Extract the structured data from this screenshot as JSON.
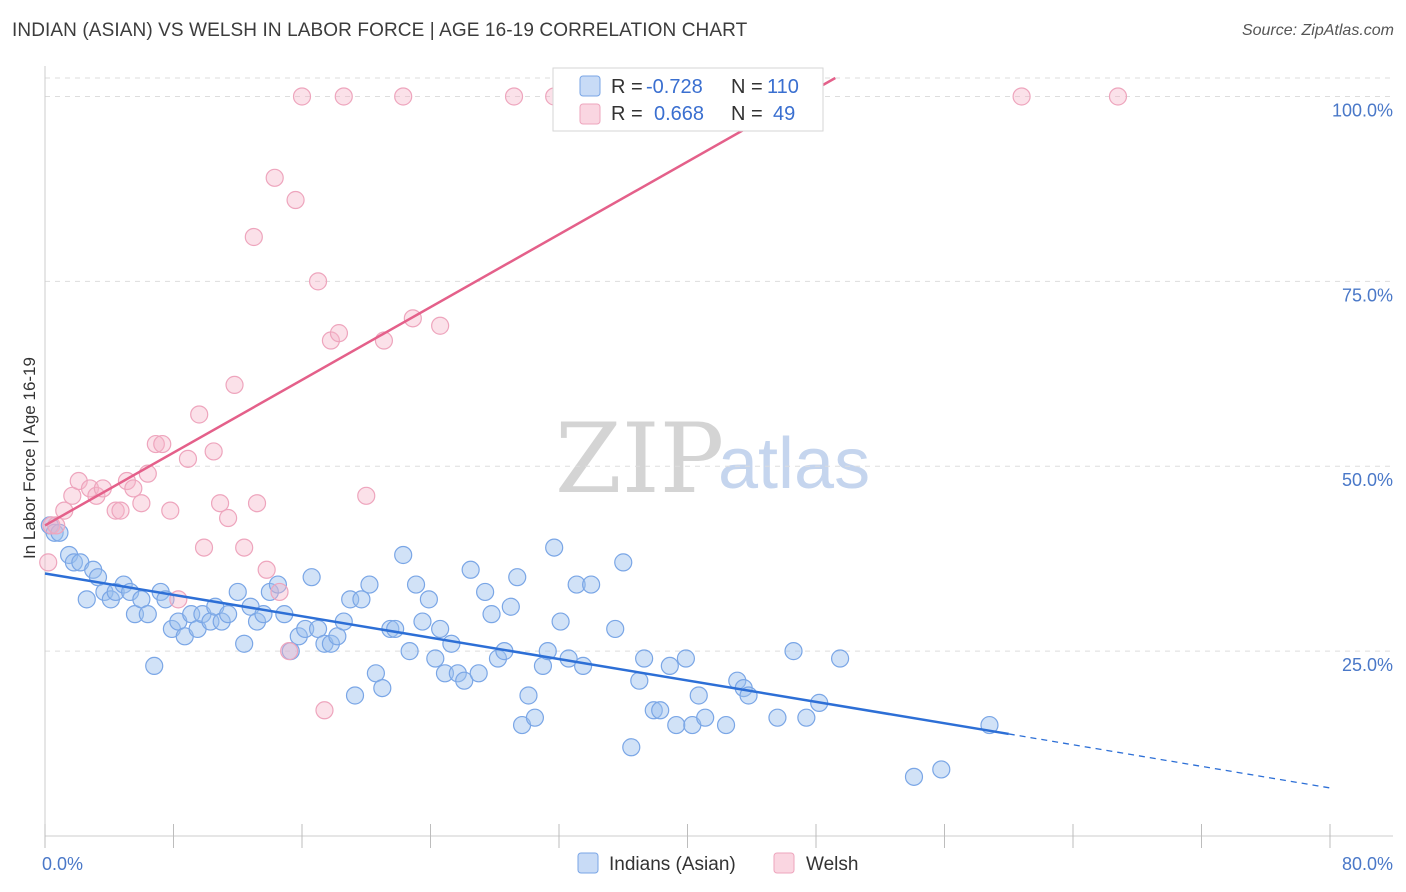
{
  "header": {
    "title": "INDIAN (ASIAN) VS WELSH IN LABOR FORCE | AGE 16-19 CORRELATION CHART",
    "source": "Source: ZipAtlas.com"
  },
  "watermark": {
    "zip": "ZIP",
    "atlas": "atlas"
  },
  "legend": {
    "r_label": "R =",
    "n_label": "N =",
    "rows": [
      {
        "r": "-0.728",
        "n": "110",
        "color": "#7aaaf0"
      },
      {
        "r": "0.668",
        "n": "49",
        "color": "#f39ab8"
      }
    ]
  },
  "colors": {
    "blue_fill": "rgba(154,190,238,0.45)",
    "blue_stroke": "#7aa6e6",
    "blue_line": "#2d6fd6",
    "pink_fill": "rgba(245,180,200,0.40)",
    "pink_stroke": "#eea5bd",
    "pink_line": "#e4608a",
    "grid": "#dddddd",
    "tick_label": "#4a78c8"
  },
  "chart_data": {
    "type": "scatter",
    "title": "INDIAN (ASIAN) VS WELSH IN LABOR FORCE | AGE 16-19 CORRELATION CHART",
    "ylabel": "In Labor Force | Age 16-19",
    "xlim": [
      0,
      80
    ],
    "ylim": [
      0,
      102.5
    ],
    "x_tick_labels": [
      "0.0%",
      "80.0%"
    ],
    "y_ticks": [
      25,
      50,
      75,
      100
    ],
    "y_tick_labels": [
      "25.0%",
      "50.0%",
      "75.0%",
      "100.0%"
    ],
    "grid": "horizontal dashed",
    "legend_position": "top-center",
    "series": [
      {
        "name": "Indians (Asian)",
        "r": -0.728,
        "n": 110,
        "trend": {
          "x0": 0,
          "y0": 35.5,
          "x1": 60,
          "y1": 13.8,
          "dash_to_x": 80,
          "dash_to_y": 6.5
        },
        "points": [
          [
            0.3,
            42
          ],
          [
            0.6,
            41
          ],
          [
            0.9,
            41
          ],
          [
            1.5,
            38
          ],
          [
            1.8,
            37
          ],
          [
            2.2,
            37
          ],
          [
            2.6,
            32
          ],
          [
            3.0,
            36
          ],
          [
            3.3,
            35
          ],
          [
            3.7,
            33
          ],
          [
            4.1,
            32
          ],
          [
            4.4,
            33
          ],
          [
            4.9,
            34
          ],
          [
            5.3,
            33
          ],
          [
            5.6,
            30
          ],
          [
            6.0,
            32
          ],
          [
            6.4,
            30
          ],
          [
            6.8,
            23
          ],
          [
            7.2,
            33
          ],
          [
            7.5,
            32
          ],
          [
            7.9,
            28
          ],
          [
            8.3,
            29
          ],
          [
            8.7,
            27
          ],
          [
            9.1,
            30
          ],
          [
            9.5,
            28
          ],
          [
            9.8,
            30
          ],
          [
            10.3,
            29
          ],
          [
            10.6,
            31
          ],
          [
            11.0,
            29
          ],
          [
            11.4,
            30
          ],
          [
            12.0,
            33
          ],
          [
            12.4,
            26
          ],
          [
            12.8,
            31
          ],
          [
            13.2,
            29
          ],
          [
            13.6,
            30
          ],
          [
            14.0,
            33
          ],
          [
            14.5,
            34
          ],
          [
            14.9,
            30
          ],
          [
            15.3,
            25
          ],
          [
            15.8,
            27
          ],
          [
            16.2,
            28
          ],
          [
            16.6,
            35
          ],
          [
            17.0,
            28
          ],
          [
            17.4,
            26
          ],
          [
            17.8,
            26
          ],
          [
            18.2,
            27
          ],
          [
            18.6,
            29
          ],
          [
            19.0,
            32
          ],
          [
            19.3,
            19
          ],
          [
            19.7,
            32
          ],
          [
            20.2,
            34
          ],
          [
            20.6,
            22
          ],
          [
            21.0,
            20
          ],
          [
            21.5,
            28
          ],
          [
            21.8,
            28
          ],
          [
            22.3,
            38
          ],
          [
            22.7,
            25
          ],
          [
            23.1,
            34
          ],
          [
            23.5,
            29
          ],
          [
            23.9,
            32
          ],
          [
            24.3,
            24
          ],
          [
            24.6,
            28
          ],
          [
            24.9,
            22
          ],
          [
            25.3,
            26
          ],
          [
            25.7,
            22
          ],
          [
            26.1,
            21
          ],
          [
            26.5,
            36
          ],
          [
            27.0,
            22
          ],
          [
            27.4,
            33
          ],
          [
            27.8,
            30
          ],
          [
            28.2,
            24
          ],
          [
            28.6,
            25
          ],
          [
            29.0,
            31
          ],
          [
            29.4,
            35
          ],
          [
            29.7,
            15
          ],
          [
            30.1,
            19
          ],
          [
            30.5,
            16
          ],
          [
            31.0,
            23
          ],
          [
            31.3,
            25
          ],
          [
            31.7,
            39
          ],
          [
            32.1,
            29
          ],
          [
            32.6,
            24
          ],
          [
            33.1,
            34
          ],
          [
            33.5,
            23
          ],
          [
            34.0,
            34
          ],
          [
            35.5,
            28
          ],
          [
            36.0,
            37
          ],
          [
            36.5,
            12
          ],
          [
            37.0,
            21
          ],
          [
            37.3,
            24
          ],
          [
            37.9,
            17
          ],
          [
            38.3,
            17
          ],
          [
            38.9,
            23
          ],
          [
            39.3,
            15
          ],
          [
            39.9,
            24
          ],
          [
            40.3,
            15
          ],
          [
            40.7,
            19
          ],
          [
            41.1,
            16
          ],
          [
            42.4,
            15
          ],
          [
            43.1,
            21
          ],
          [
            43.5,
            20
          ],
          [
            43.8,
            19
          ],
          [
            45.6,
            16
          ],
          [
            46.6,
            25
          ],
          [
            47.4,
            16
          ],
          [
            48.2,
            18
          ],
          [
            49.5,
            24
          ],
          [
            54.1,
            8
          ],
          [
            55.8,
            9
          ],
          [
            58.8,
            15
          ]
        ]
      },
      {
        "name": "Welsh",
        "r": 0.668,
        "n": 49,
        "trend": {
          "x0": 0,
          "y0": 42.0,
          "x1": 49.2,
          "y1": 102.5
        },
        "points": [
          [
            0.2,
            37
          ],
          [
            0.4,
            42
          ],
          [
            0.7,
            42
          ],
          [
            1.2,
            44
          ],
          [
            1.7,
            46
          ],
          [
            2.1,
            48
          ],
          [
            2.8,
            47
          ],
          [
            3.2,
            46
          ],
          [
            3.6,
            47
          ],
          [
            4.4,
            44
          ],
          [
            4.7,
            44
          ],
          [
            5.1,
            48
          ],
          [
            5.5,
            47
          ],
          [
            6.0,
            45
          ],
          [
            6.4,
            49
          ],
          [
            6.9,
            53
          ],
          [
            7.3,
            53
          ],
          [
            7.8,
            44
          ],
          [
            8.3,
            32
          ],
          [
            8.9,
            51
          ],
          [
            9.6,
            57
          ],
          [
            9.9,
            39
          ],
          [
            10.5,
            52
          ],
          [
            10.9,
            45
          ],
          [
            11.4,
            43
          ],
          [
            11.8,
            61
          ],
          [
            12.4,
            39
          ],
          [
            13.0,
            81
          ],
          [
            13.2,
            45
          ],
          [
            13.8,
            36
          ],
          [
            14.3,
            89
          ],
          [
            14.6,
            33
          ],
          [
            15.2,
            25
          ],
          [
            15.6,
            86
          ],
          [
            16.0,
            100
          ],
          [
            17.0,
            75
          ],
          [
            17.4,
            17
          ],
          [
            17.8,
            67
          ],
          [
            18.3,
            68
          ],
          [
            18.6,
            100
          ],
          [
            20.0,
            46
          ],
          [
            21.1,
            67
          ],
          [
            22.3,
            100
          ],
          [
            22.9,
            70
          ],
          [
            24.6,
            69
          ],
          [
            29.2,
            100
          ],
          [
            31.7,
            100
          ],
          [
            60.8,
            100
          ],
          [
            66.8,
            100
          ]
        ]
      }
    ]
  },
  "bottom_legend": [
    {
      "label": "Indians (Asian)"
    },
    {
      "label": "Welsh"
    }
  ]
}
